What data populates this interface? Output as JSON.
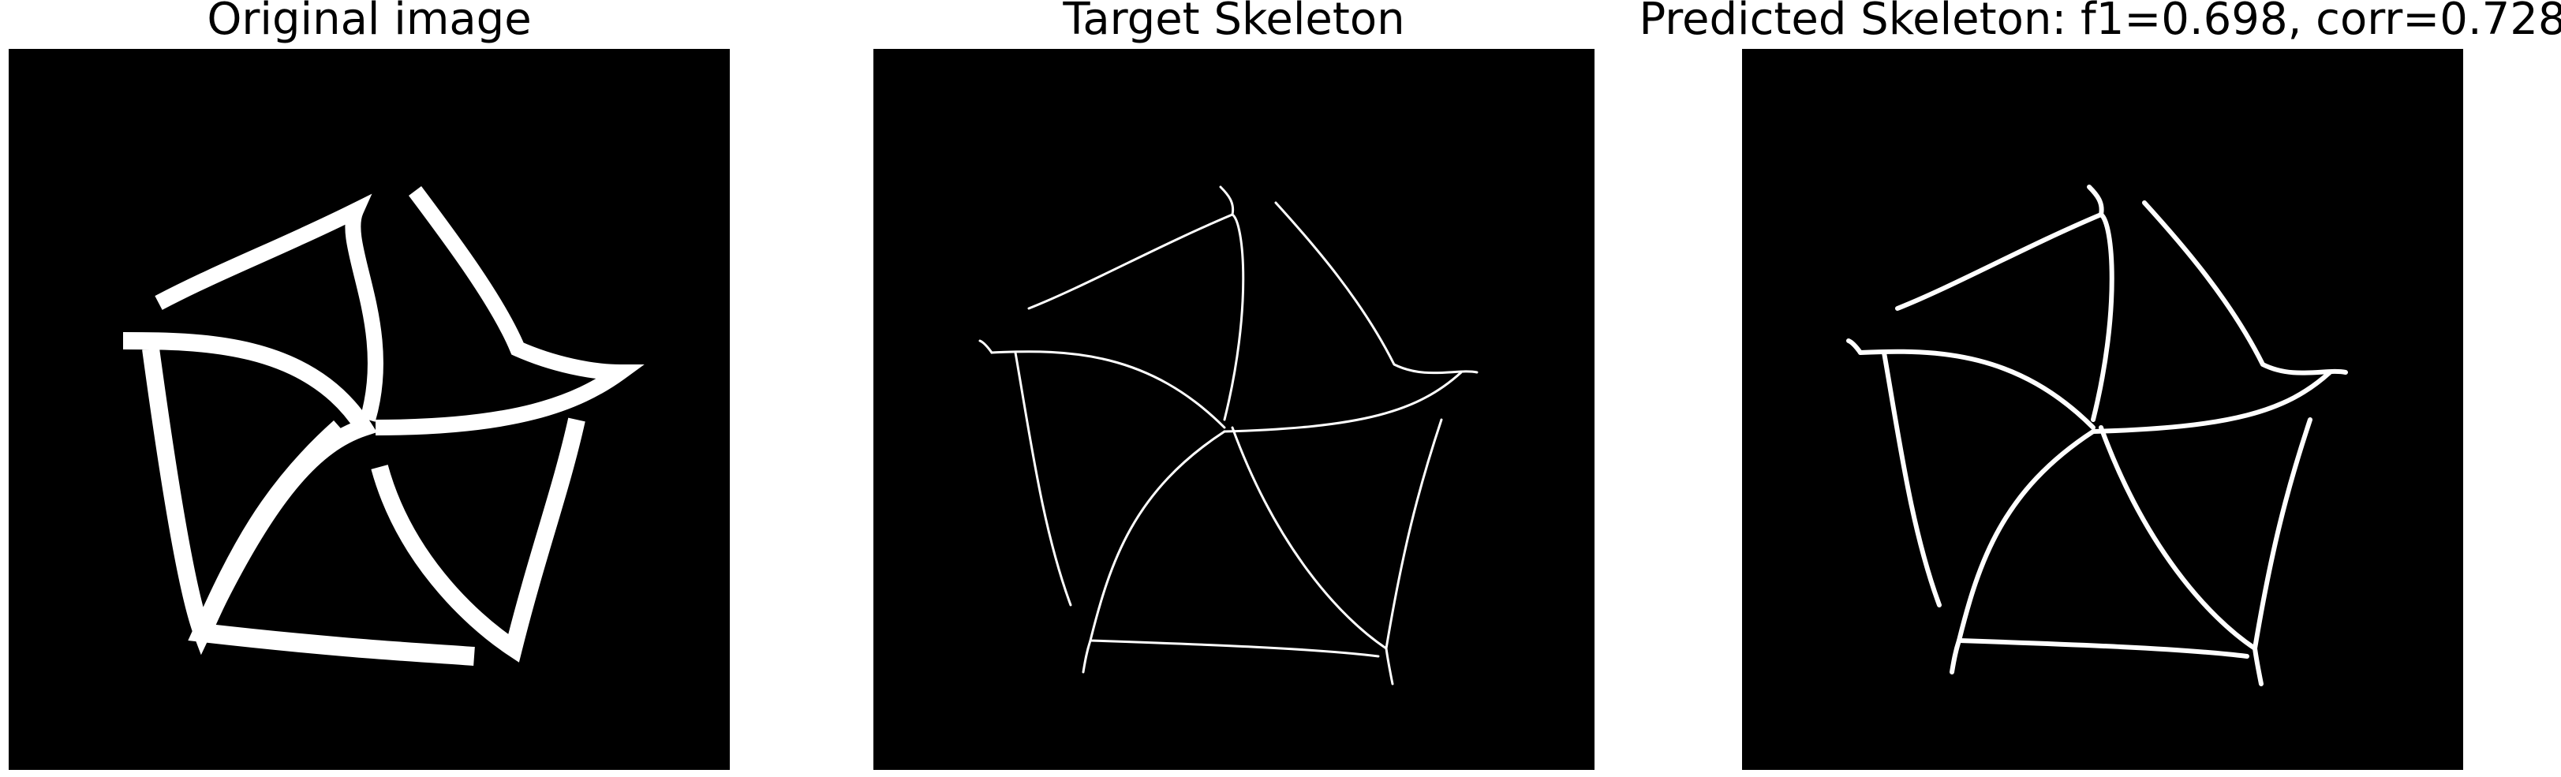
{
  "panels": [
    {
      "title": "Original image",
      "kind": "original"
    },
    {
      "title": "Target Skeleton",
      "kind": "target-skeleton"
    },
    {
      "title": "Predicted Skeleton: f1=0.698, corr=0.728",
      "kind": "predicted-skeleton"
    }
  ],
  "colors": {
    "background": "#ffffff",
    "image_background": "#000000",
    "foreground": "#ffffff",
    "title_text": "#000000"
  }
}
